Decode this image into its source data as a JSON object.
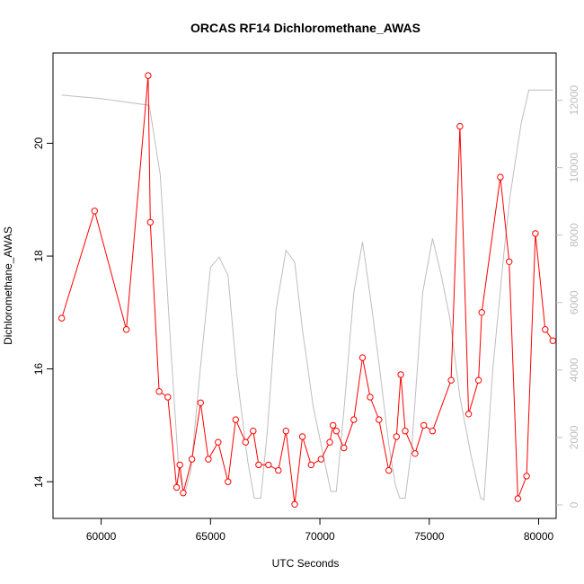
{
  "chart_data": {
    "type": "line",
    "title": "ORCAS RF14 Dichloromethane_AWAS",
    "xlabel": "UTC Seconds",
    "ylabel": "Dichloromethane_AWAS",
    "xlim": [
      57800,
      80800
    ],
    "ylim": [
      13.35,
      21.6
    ],
    "y2lim": [
      -400,
      13400
    ],
    "x_ticks": [
      60000,
      65000,
      70000,
      75000,
      80000
    ],
    "x_tick_labels": [
      "60000",
      "65000",
      "70000",
      "75000",
      "80000"
    ],
    "y_ticks": [
      14,
      16,
      18,
      20
    ],
    "y_tick_labels": [
      "14",
      "16",
      "18",
      "20"
    ],
    "y2_ticks": [
      0,
      2000,
      4000,
      6000,
      8000,
      10000,
      12000
    ],
    "y2_tick_labels": [
      "0",
      "2000",
      "4000",
      "6000",
      "8000",
      "10000",
      "12000"
    ],
    "grid": false,
    "series": [
      {
        "color": "#ff0000",
        "axis": "left",
        "marker": "open-circle",
        "points": [
          [
            58200,
            16.9
          ],
          [
            59700,
            18.8
          ],
          [
            61150,
            16.7
          ],
          [
            62150,
            21.2
          ],
          [
            62250,
            18.6
          ],
          [
            62650,
            15.6
          ],
          [
            63050,
            15.5
          ],
          [
            63450,
            13.9
          ],
          [
            63600,
            14.3
          ],
          [
            63750,
            13.8
          ],
          [
            64150,
            14.4
          ],
          [
            64550,
            15.4
          ],
          [
            64900,
            14.4
          ],
          [
            65350,
            14.7
          ],
          [
            65800,
            14.0
          ],
          [
            66150,
            15.1
          ],
          [
            66600,
            14.7
          ],
          [
            66950,
            14.9
          ],
          [
            67200,
            14.3
          ],
          [
            67650,
            14.3
          ],
          [
            68100,
            14.2
          ],
          [
            68450,
            14.9
          ],
          [
            68850,
            13.6
          ],
          [
            69200,
            14.8
          ],
          [
            69600,
            14.3
          ],
          [
            70050,
            14.4
          ],
          [
            70450,
            14.7
          ],
          [
            70600,
            15.0
          ],
          [
            70750,
            14.9
          ],
          [
            71100,
            14.6
          ],
          [
            71550,
            15.1
          ],
          [
            71950,
            16.2
          ],
          [
            72300,
            15.5
          ],
          [
            72700,
            15.1
          ],
          [
            73150,
            14.2
          ],
          [
            73500,
            14.8
          ],
          [
            73700,
            15.9
          ],
          [
            73900,
            14.9
          ],
          [
            74350,
            14.5
          ],
          [
            74750,
            15.0
          ],
          [
            75150,
            14.9
          ],
          [
            76000,
            15.8
          ],
          [
            76400,
            20.3
          ],
          [
            76800,
            15.2
          ],
          [
            77250,
            15.8
          ],
          [
            77400,
            17.0
          ],
          [
            78250,
            19.4
          ],
          [
            78650,
            17.9
          ],
          [
            79050,
            13.7
          ],
          [
            79450,
            14.1
          ],
          [
            79850,
            18.4
          ],
          [
            80300,
            16.7
          ],
          [
            80650,
            16.5
          ]
        ]
      },
      {
        "color": "#bebebe",
        "axis": "right",
        "marker": "none",
        "points": [
          [
            58200,
            12150
          ],
          [
            60000,
            12050
          ],
          [
            62200,
            11850
          ],
          [
            62700,
            9800
          ],
          [
            63200,
            4500
          ],
          [
            63550,
            1000
          ],
          [
            63800,
            300
          ],
          [
            64100,
            1000
          ],
          [
            64500,
            3800
          ],
          [
            65000,
            7050
          ],
          [
            65400,
            7350
          ],
          [
            65800,
            6800
          ],
          [
            66200,
            3900
          ],
          [
            66700,
            1300
          ],
          [
            67000,
            200
          ],
          [
            67300,
            200
          ],
          [
            67600,
            2200
          ],
          [
            68000,
            5800
          ],
          [
            68450,
            7550
          ],
          [
            68850,
            7200
          ],
          [
            69200,
            5200
          ],
          [
            69700,
            2900
          ],
          [
            70500,
            400
          ],
          [
            70750,
            400
          ],
          [
            71100,
            2800
          ],
          [
            71550,
            6300
          ],
          [
            71950,
            7800
          ],
          [
            72300,
            6200
          ],
          [
            72700,
            4200
          ],
          [
            73150,
            1800
          ],
          [
            73450,
            600
          ],
          [
            73650,
            200
          ],
          [
            73900,
            200
          ],
          [
            74200,
            1700
          ],
          [
            74700,
            6300
          ],
          [
            75150,
            7900
          ],
          [
            75550,
            6800
          ],
          [
            75950,
            5500
          ],
          [
            76400,
            3200
          ],
          [
            76900,
            1500
          ],
          [
            77350,
            200
          ],
          [
            77500,
            150
          ],
          [
            77900,
            4000
          ],
          [
            78400,
            7400
          ],
          [
            78700,
            9200
          ],
          [
            79200,
            11300
          ],
          [
            79550,
            12300
          ],
          [
            80000,
            12300
          ],
          [
            80650,
            12300
          ]
        ]
      }
    ]
  }
}
